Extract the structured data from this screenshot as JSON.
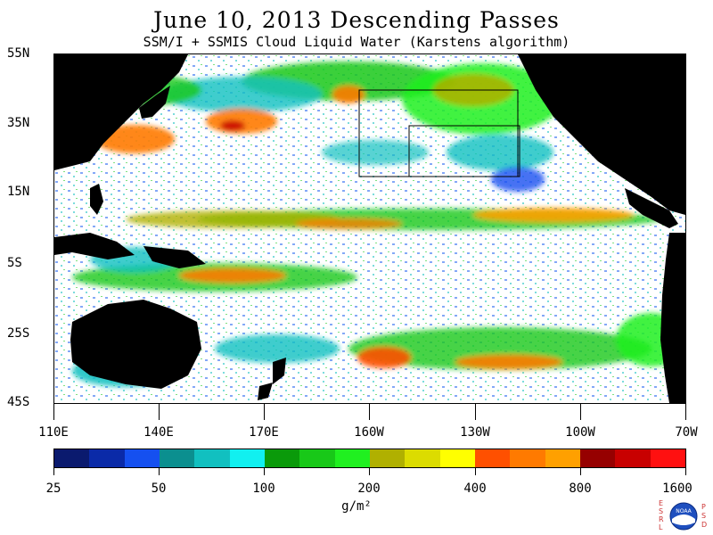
{
  "header": {
    "title": "June 10, 2013  Descending Passes",
    "subtitle": "SSM/I + SSMIS Cloud Liquid Water (Karstens algorithm)"
  },
  "map": {
    "latitude_labels": [
      "55N",
      "35N",
      "15N",
      "5S",
      "25S",
      "45S"
    ],
    "longitude_labels": [
      "110E",
      "140E",
      "170E",
      "160W",
      "130W",
      "100W",
      "70W"
    ],
    "land_color": "#000000",
    "no_data_color": "#ffffff"
  },
  "colorbar": {
    "colors": [
      "#0a1a6e",
      "#0a2aa8",
      "#1550f0",
      "#0b8f8f",
      "#11c0c0",
      "#11f0f0",
      "#0a9a0a",
      "#18c818",
      "#20f020",
      "#b0b000",
      "#dcdc00",
      "#ffff00",
      "#ff5000",
      "#ff7a00",
      "#ffa000",
      "#960000",
      "#c80000",
      "#ff1010"
    ],
    "tick_labels": [
      "25",
      "50",
      "100",
      "200",
      "400",
      "800",
      "1600"
    ],
    "units": "g/m²"
  },
  "logo": {
    "left_letters": [
      "E",
      "S",
      "R",
      "L"
    ],
    "right_letters": [
      "P",
      "S",
      "D"
    ],
    "center_text": "NOAA"
  }
}
